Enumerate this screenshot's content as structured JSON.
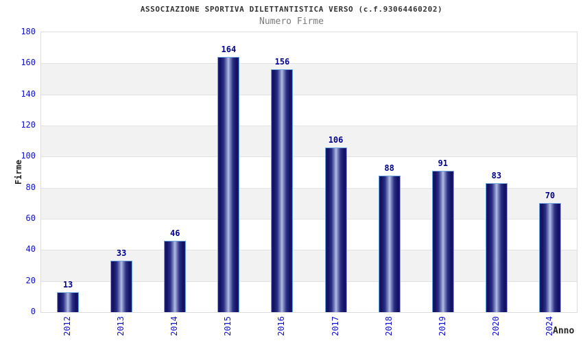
{
  "chart_data": {
    "type": "bar",
    "title": "ASSOCIAZIONE SPORTIVA DILETTANTISTICA VERSO (c.f.93064460202)",
    "subtitle": "Numero Firme",
    "categories": [
      "2012",
      "2013",
      "2014",
      "2015",
      "2016",
      "2017",
      "2018",
      "2019",
      "2020",
      "2024"
    ],
    "values": [
      13,
      33,
      46,
      164,
      156,
      106,
      88,
      91,
      83,
      70
    ],
    "xlabel": "Anno",
    "ylabel": "Firme",
    "ylim": [
      0,
      180
    ],
    "ytick_step": 20,
    "yticks": [
      0,
      20,
      40,
      60,
      80,
      100,
      120,
      140,
      160,
      180
    ],
    "legend": "none",
    "grid": "horizontal-bands-alternating",
    "colors": {
      "bar_edge_dark": "#15156b",
      "bar_highlight": "#b7c0e4",
      "bar_border": "#6fa8e0",
      "axis_tick_label": "#0f0fd0",
      "value_label": "#00008b",
      "band_gray": "#f2f2f2",
      "band_white": "#ffffff",
      "grid_line": "#e3e3e3",
      "plot_border": "#dcdcdc",
      "title": "#333333",
      "subtitle": "#7a7a7a",
      "axis_title": "#222222"
    }
  }
}
